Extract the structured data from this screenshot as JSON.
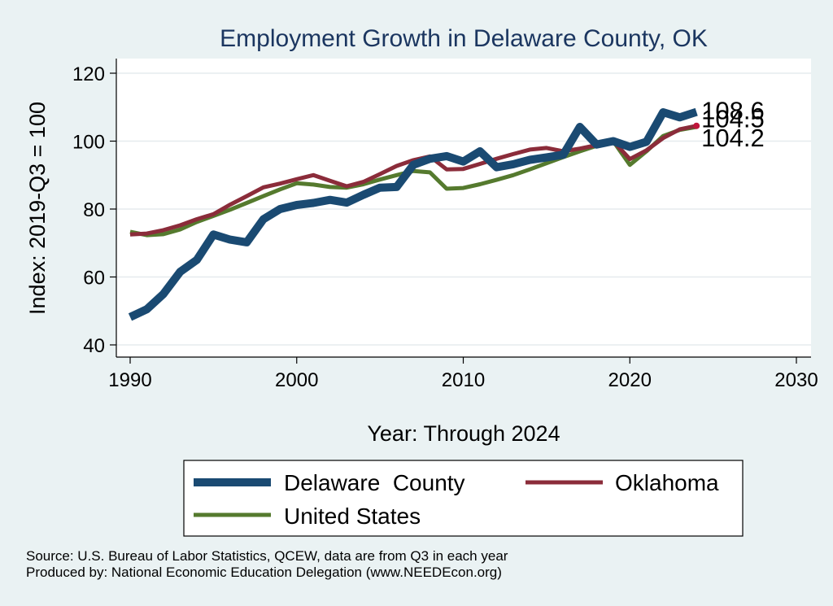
{
  "chart_data": {
    "type": "line",
    "title": "Employment Growth in Delaware County, OK",
    "xlabel": "Year: Through 2024",
    "ylabel": "Index: 2019-Q3 = 100",
    "xlim": [
      1990,
      2030
    ],
    "ylim": [
      37,
      124
    ],
    "xticks": [
      "1990",
      "2000",
      "2010",
      "2020",
      "2030"
    ],
    "yticks": [
      "40",
      "60",
      "80",
      "100",
      "120"
    ],
    "grid": true,
    "legend_position": "bottom",
    "x": [
      1990,
      1991,
      1992,
      1993,
      1994,
      1995,
      1996,
      1997,
      1998,
      1999,
      2000,
      2001,
      2002,
      2003,
      2004,
      2005,
      2006,
      2007,
      2008,
      2009,
      2010,
      2011,
      2012,
      2013,
      2014,
      2015,
      2016,
      2017,
      2018,
      2019,
      2020,
      2021,
      2022,
      2023,
      2024
    ],
    "series": [
      {
        "name": "Delaware  County",
        "color": "#1a4a72",
        "values": [
          48.2,
          50.5,
          55.0,
          61.5,
          65.0,
          72.5,
          71.0,
          70.2,
          77.0,
          80.0,
          81.2,
          81.8,
          82.7,
          81.9,
          84.2,
          86.3,
          86.5,
          93.0,
          94.8,
          95.6,
          94.0,
          97.0,
          92.3,
          93.2,
          94.5,
          95.2,
          96.0,
          104.2,
          99.0,
          100.0,
          98.3,
          99.8,
          108.5,
          107.0,
          108.6
        ],
        "end_label": "108.6"
      },
      {
        "name": "Oklahoma",
        "color": "#8b2c3a",
        "values": [
          72.5,
          72.8,
          73.8,
          75.2,
          77.0,
          78.5,
          81.3,
          83.8,
          86.4,
          87.5,
          88.8,
          90.0,
          88.3,
          86.7,
          88.0,
          90.3,
          92.7,
          94.4,
          95.5,
          91.7,
          91.8,
          93.3,
          94.8,
          96.2,
          97.5,
          98.0,
          97.0,
          97.8,
          98.8,
          100.0,
          94.7,
          97.3,
          100.9,
          103.5,
          104.5
        ],
        "end_label": "104.5"
      },
      {
        "name": "United States",
        "color": "#557a2e",
        "values": [
          73.3,
          72.3,
          72.6,
          74.0,
          76.2,
          78.0,
          79.8,
          81.8,
          83.8,
          85.8,
          87.6,
          87.2,
          86.5,
          86.3,
          87.3,
          88.7,
          90.0,
          91.2,
          90.8,
          86.0,
          86.2,
          87.3,
          88.6,
          90.0,
          91.7,
          93.5,
          95.3,
          97.0,
          98.6,
          100.0,
          93.0,
          97.0,
          101.5,
          103.3,
          104.2
        ],
        "end_label": "104.2"
      }
    ]
  },
  "source": {
    "line1": "Source: U.S. Bureau of Labor Statistics, QCEW, data are from Q3 in each year",
    "line2": "Produced by: National Economic Education Delegation (www.NEEDEcon.org)"
  }
}
